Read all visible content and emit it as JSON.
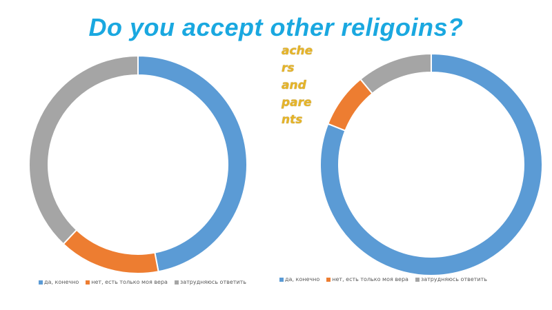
{
  "slide": {
    "title": "Do you accept other religoins?",
    "title_color": "#1aa8e0",
    "side_label_lines": [
      "ache",
      "rs",
      "and",
      "pare",
      "nts"
    ]
  },
  "legend_labels": [
    "да, конечно",
    "нет, есть только моя вера",
    "затрудняюсь ответить"
  ],
  "colors": {
    "yes": "#5b9bd5",
    "no": "#ed7d31",
    "unsure": "#a5a5a5"
  },
  "chart_data": [
    {
      "type": "pie",
      "variant": "donut",
      "categories": [
        "да, конечно",
        "нет, есть только моя вера",
        "затрудняюсь ответить"
      ],
      "values": [
        47,
        15,
        38
      ],
      "legend_position": "bottom"
    },
    {
      "type": "pie",
      "variant": "donut",
      "categories": [
        "да, конечно",
        "нет, есть только моя вера",
        "затрудняюсь ответить"
      ],
      "values": [
        81,
        8,
        11
      ],
      "legend_position": "bottom"
    }
  ]
}
